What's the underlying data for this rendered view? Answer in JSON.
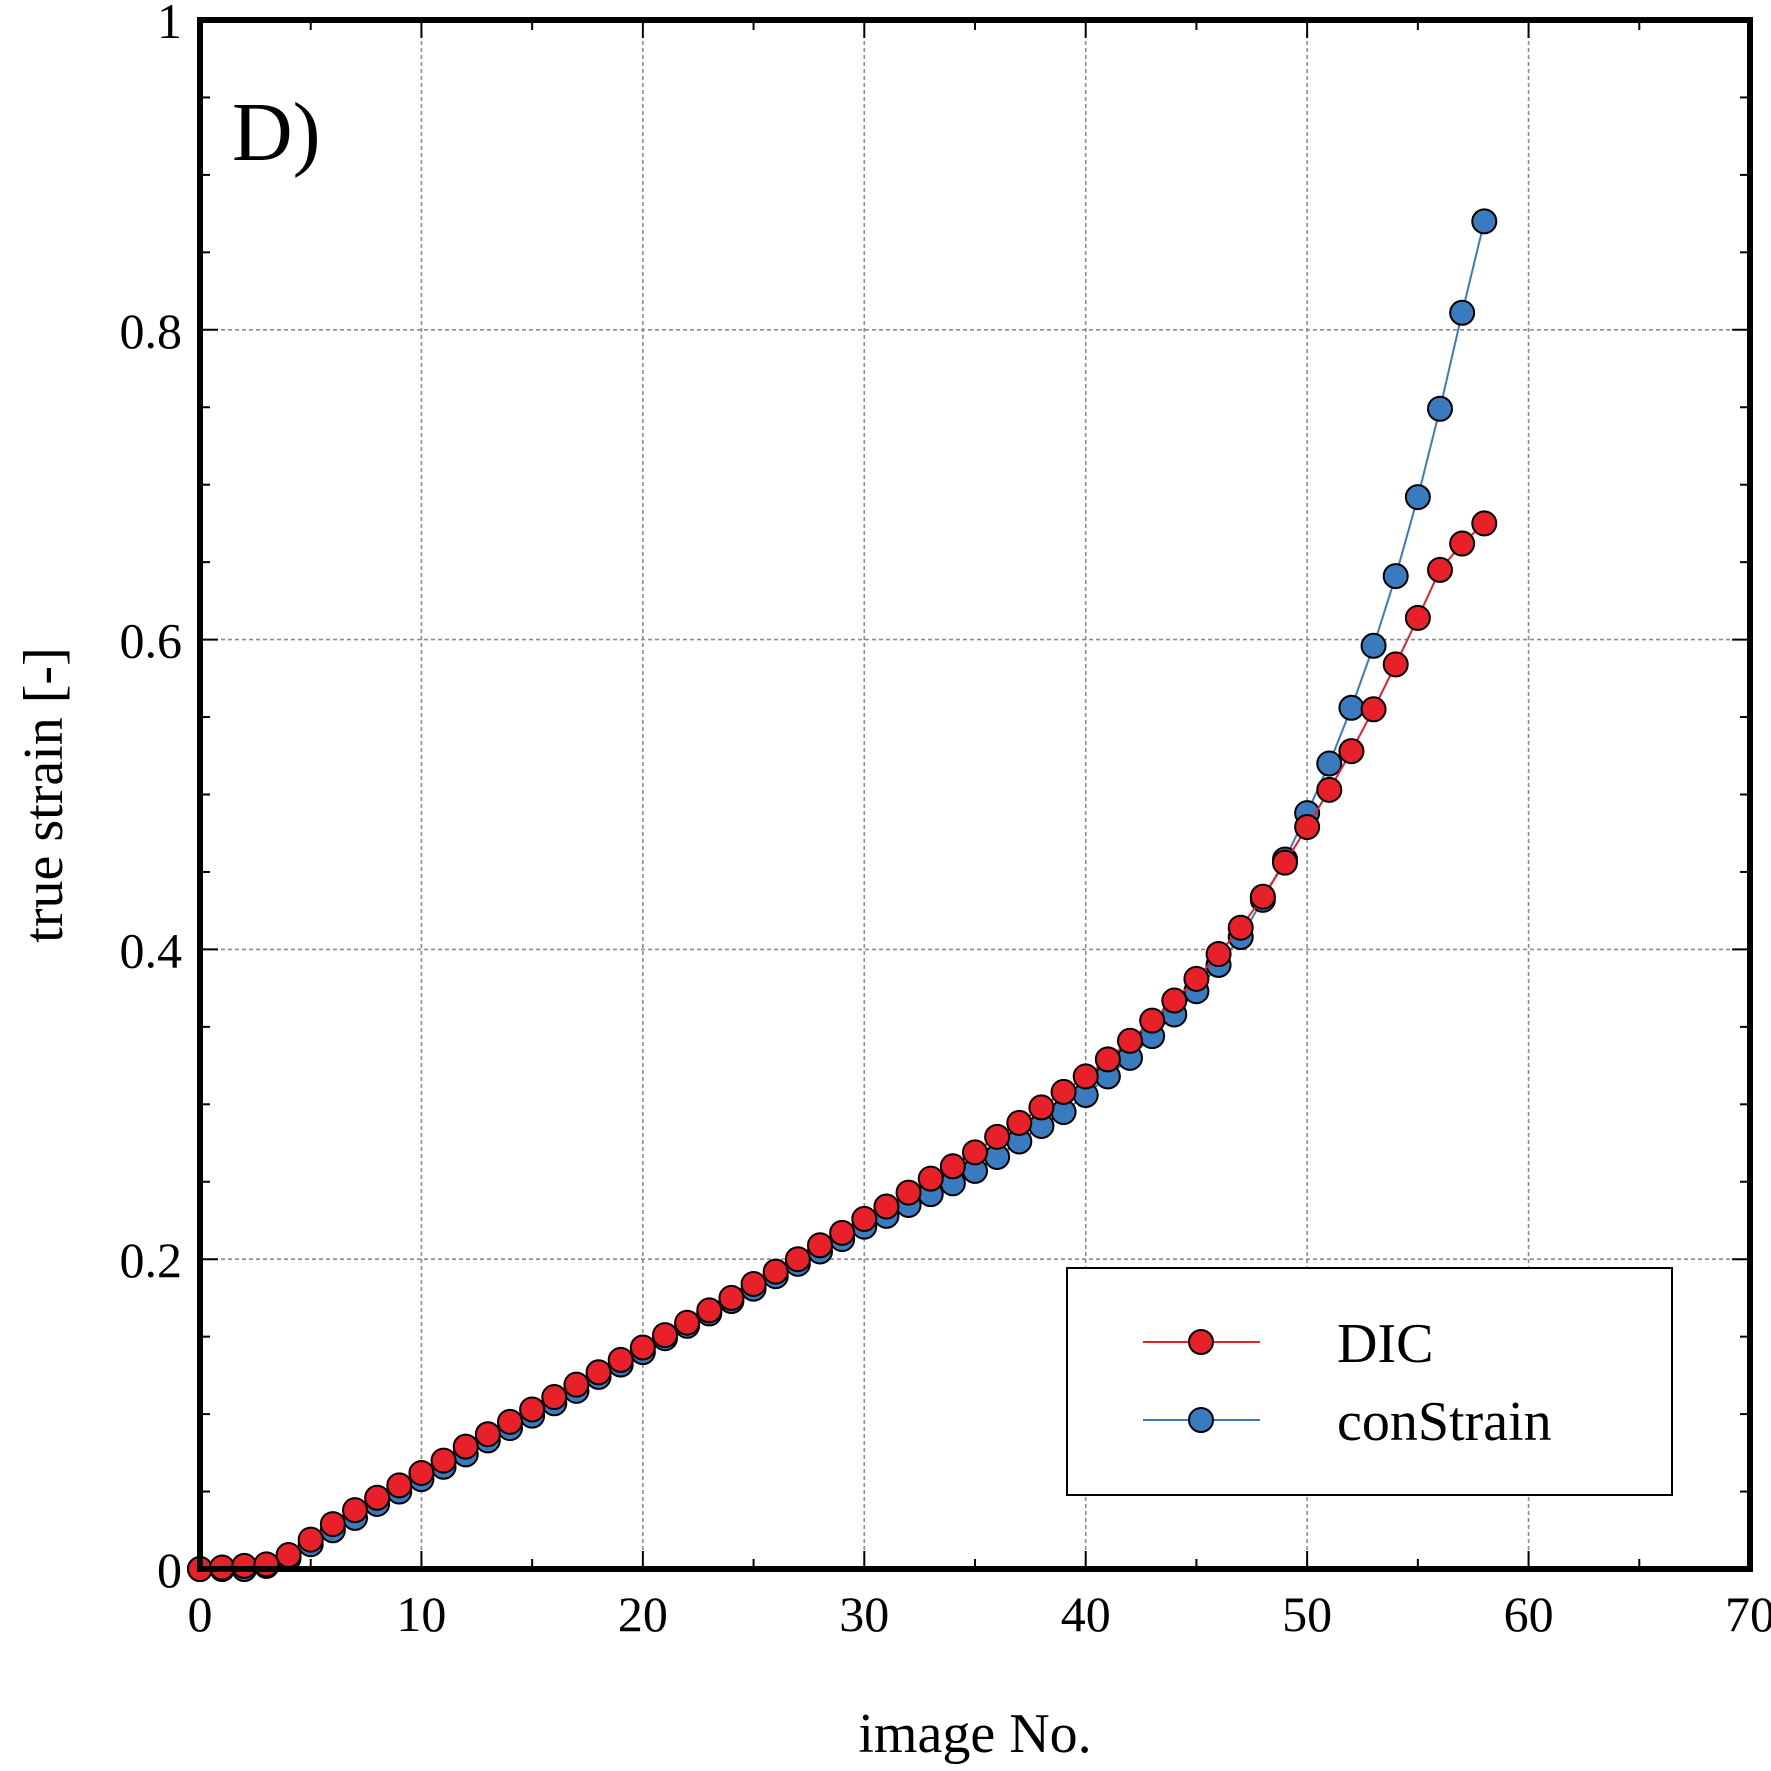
{
  "chart_data": {
    "type": "line",
    "panel_label": "D)",
    "xlabel": "image No.",
    "ylabel": "true strain [-]",
    "xlim": [
      0,
      70
    ],
    "ylim": [
      0,
      1
    ],
    "x_ticks": [
      "0",
      "10",
      "20",
      "30",
      "40",
      "50",
      "60",
      "70"
    ],
    "y_ticks": [
      "0",
      "0.2",
      "0.4",
      "0.6",
      "0.8",
      "1"
    ],
    "grid": true,
    "legend_position": "bottom-right",
    "marker": "circle",
    "series": [
      {
        "name": "DIC",
        "color": "#e8202a",
        "x": [
          0,
          1,
          2,
          3,
          4,
          5,
          6,
          7,
          8,
          9,
          10,
          11,
          12,
          13,
          14,
          15,
          16,
          17,
          18,
          19,
          20,
          21,
          22,
          23,
          24,
          25,
          26,
          27,
          28,
          29,
          30,
          31,
          32,
          33,
          34,
          35,
          36,
          37,
          38,
          39,
          40,
          41,
          42,
          43,
          44,
          45,
          46,
          47,
          48,
          49,
          50,
          51,
          52,
          53,
          54,
          55,
          56,
          57,
          58
        ],
        "y": [
          0,
          0.001,
          0.002,
          0.003,
          0.009,
          0.019,
          0.029,
          0.038,
          0.046,
          0.054,
          0.062,
          0.07,
          0.079,
          0.087,
          0.095,
          0.103,
          0.111,
          0.119,
          0.127,
          0.135,
          0.143,
          0.151,
          0.159,
          0.167,
          0.175,
          0.184,
          0.192,
          0.2,
          0.209,
          0.217,
          0.226,
          0.234,
          0.243,
          0.252,
          0.26,
          0.269,
          0.279,
          0.288,
          0.298,
          0.308,
          0.318,
          0.329,
          0.341,
          0.354,
          0.367,
          0.381,
          0.397,
          0.414,
          0.434,
          0.456,
          0.479,
          0.503,
          0.528,
          0.555,
          0.584,
          0.614,
          0.645,
          0.662,
          0.675
        ]
      },
      {
        "name": "conStrain",
        "color": "#3a7abf",
        "x": [
          0,
          1,
          2,
          3,
          4,
          5,
          6,
          7,
          8,
          9,
          10,
          11,
          12,
          13,
          14,
          15,
          16,
          17,
          18,
          19,
          20,
          21,
          22,
          23,
          24,
          25,
          26,
          27,
          28,
          29,
          30,
          31,
          32,
          33,
          34,
          35,
          36,
          37,
          38,
          39,
          40,
          41,
          42,
          43,
          44,
          45,
          46,
          47,
          48,
          49,
          50,
          51,
          52,
          53,
          54,
          55,
          56,
          57,
          58
        ],
        "y": [
          0,
          0,
          0,
          0.002,
          0.007,
          0.016,
          0.025,
          0.033,
          0.042,
          0.05,
          0.058,
          0.066,
          0.074,
          0.083,
          0.091,
          0.099,
          0.107,
          0.115,
          0.124,
          0.132,
          0.14,
          0.149,
          0.157,
          0.165,
          0.173,
          0.181,
          0.189,
          0.197,
          0.205,
          0.213,
          0.221,
          0.228,
          0.235,
          0.242,
          0.249,
          0.257,
          0.266,
          0.276,
          0.286,
          0.295,
          0.306,
          0.318,
          0.33,
          0.344,
          0.358,
          0.373,
          0.39,
          0.408,
          0.432,
          0.458,
          0.488,
          0.52,
          0.556,
          0.596,
          0.641,
          0.692,
          0.749,
          0.811,
          0.87
        ]
      }
    ]
  }
}
